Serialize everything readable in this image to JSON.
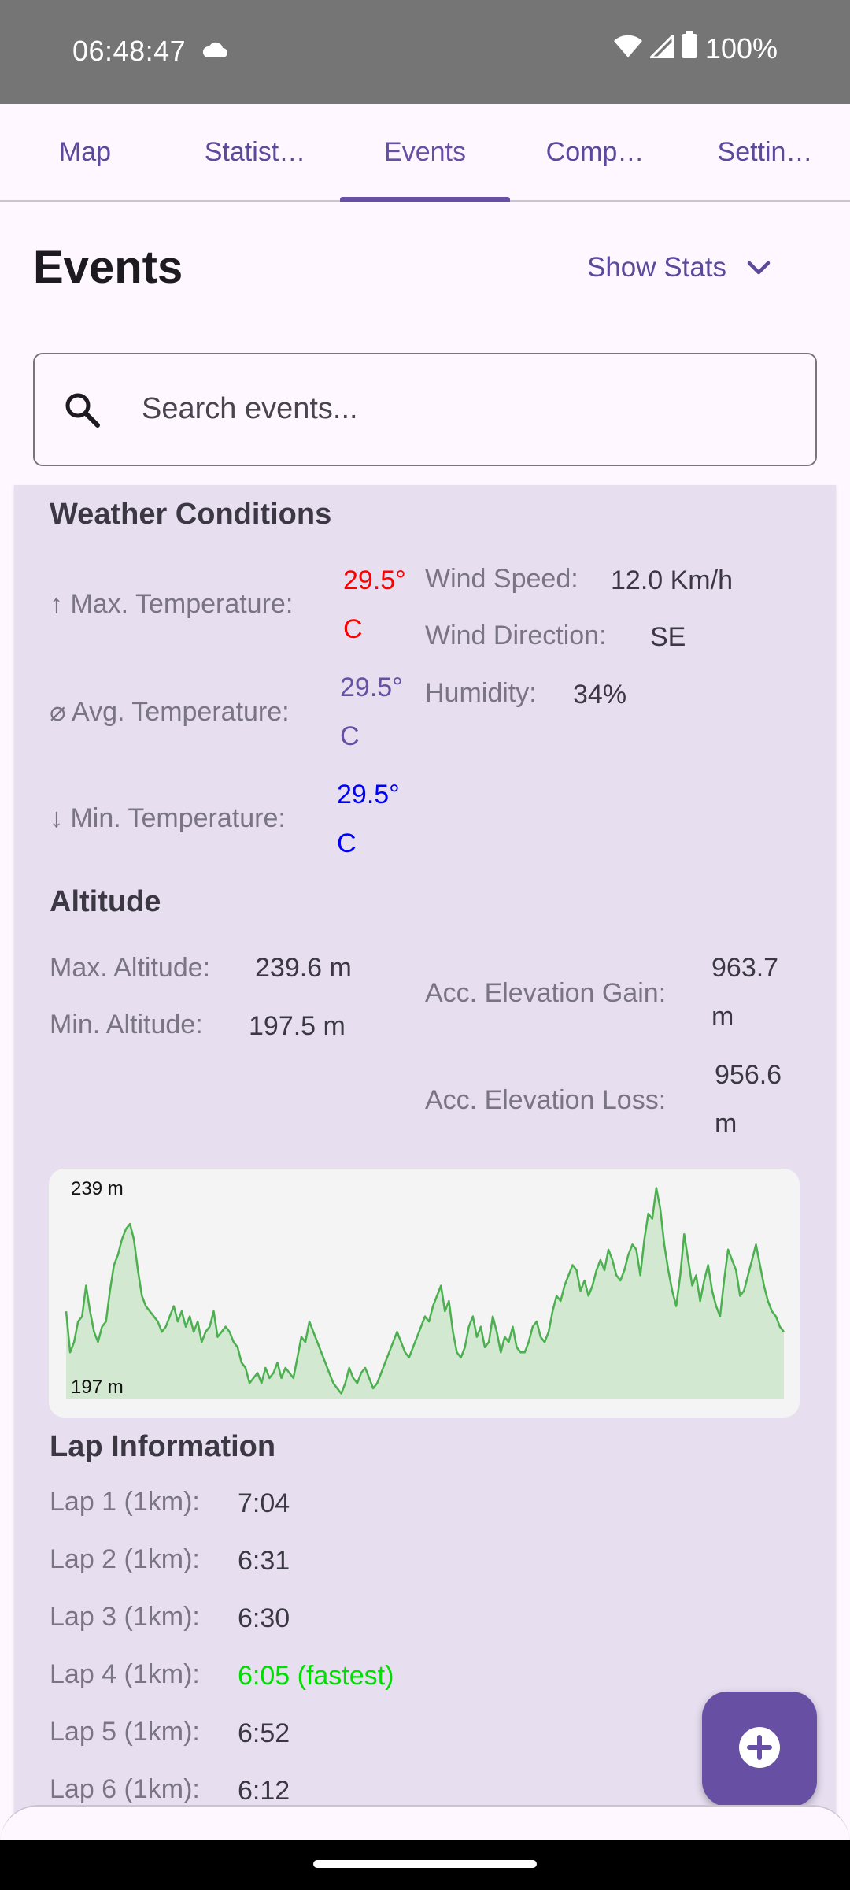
{
  "status_bar": {
    "time": "06:48:47",
    "battery": "100%",
    "icons": [
      "cloud-icon",
      "wifi-icon",
      "signal-icon",
      "battery-icon"
    ]
  },
  "tabs": [
    {
      "label": "Map",
      "active": false
    },
    {
      "label": "Statist…",
      "active": false
    },
    {
      "label": "Events",
      "active": true
    },
    {
      "label": "Comp…",
      "active": false
    },
    {
      "label": "Settin…",
      "active": false
    }
  ],
  "header": {
    "title": "Events",
    "show_stats_label": "Show Stats"
  },
  "search": {
    "placeholder": "Search events..."
  },
  "weather": {
    "title": "Weather Conditions",
    "max_temp_label": "↑ Max. Temperature:",
    "max_temp_value": "29.5°",
    "max_temp_unit": "C",
    "avg_temp_label": "⌀ Avg. Temperature:",
    "avg_temp_value": "29.5°",
    "avg_temp_unit": "C",
    "min_temp_label": "↓ Min. Temperature:",
    "min_temp_value": "29.5°",
    "min_temp_unit": "C",
    "wind_speed_label": "Wind Speed:",
    "wind_speed_value": "12.0 Km/h",
    "wind_direction_label": "Wind Direction:",
    "wind_direction_value": "SE",
    "humidity_label": "Humidity:",
    "humidity_value": "34%"
  },
  "altitude": {
    "title": "Altitude",
    "max_label": "Max. Altitude:",
    "max_value": "239.6 m",
    "min_label": "Min. Altitude:",
    "min_value": "197.5 m",
    "gain_label": "Acc. Elevation Gain:",
    "gain_value": "963.7",
    "gain_unit": "m",
    "loss_label": "Acc. Elevation Loss:",
    "loss_value": "956.6",
    "loss_unit": "m"
  },
  "chart_data": {
    "type": "area",
    "tick_labels": [
      "239 m",
      "197 m"
    ],
    "ylim": [
      197,
      239
    ],
    "color": "#4caf50",
    "fill": "#d2e8d0",
    "values": [
      214,
      206,
      208,
      212,
      213,
      219,
      214,
      210,
      208,
      211,
      212,
      218,
      223,
      225,
      228,
      230,
      231,
      228,
      222,
      217,
      215,
      214,
      213,
      212,
      210,
      211,
      213,
      215,
      212,
      214,
      211,
      213,
      210,
      212,
      208,
      210,
      211,
      214,
      209,
      210,
      211,
      210,
      208,
      207,
      204,
      203,
      200,
      201,
      202,
      200,
      203,
      201,
      202,
      204,
      201,
      203,
      202,
      201,
      205,
      209,
      208,
      212,
      210,
      208,
      206,
      204,
      202,
      200,
      199,
      198,
      200,
      203,
      201,
      200,
      202,
      203,
      201,
      199,
      200,
      202,
      204,
      206,
      208,
      210,
      208,
      206,
      205,
      207,
      209,
      211,
      213,
      212,
      215,
      217,
      219,
      214,
      216,
      210,
      206,
      205,
      207,
      211,
      213,
      209,
      211,
      207,
      208,
      213,
      210,
      206,
      209,
      208,
      211,
      207,
      206,
      206,
      208,
      211,
      212,
      209,
      208,
      210,
      214,
      217,
      216,
      219,
      221,
      223,
      222,
      218,
      220,
      217,
      219,
      222,
      224,
      222,
      226,
      224,
      221,
      220,
      222,
      225,
      227,
      226,
      221,
      228,
      233,
      232,
      238,
      234,
      227,
      222,
      218,
      215,
      221,
      229,
      224,
      219,
      221,
      216,
      220,
      223,
      218,
      215,
      213,
      220,
      226,
      224,
      222,
      217,
      218,
      221,
      224,
      227,
      223,
      219,
      216,
      214,
      213,
      211,
      210
    ]
  },
  "laps": {
    "title": "Lap Information",
    "items": [
      {
        "label": "Lap 1 (1km):",
        "value": "7:04",
        "fastest": false
      },
      {
        "label": "Lap 2 (1km):",
        "value": "6:31",
        "fastest": false
      },
      {
        "label": "Lap 3 (1km):",
        "value": "6:30",
        "fastest": false
      },
      {
        "label": "Lap 4 (1km):",
        "value": "6:05 (fastest)",
        "fastest": true
      },
      {
        "label": "Lap 5 (1km):",
        "value": "6:52",
        "fastest": false
      },
      {
        "label": "Lap 6 (1km):",
        "value": "6:12",
        "fastest": false
      }
    ]
  },
  "fab": {
    "icon": "add-circle-icon"
  }
}
